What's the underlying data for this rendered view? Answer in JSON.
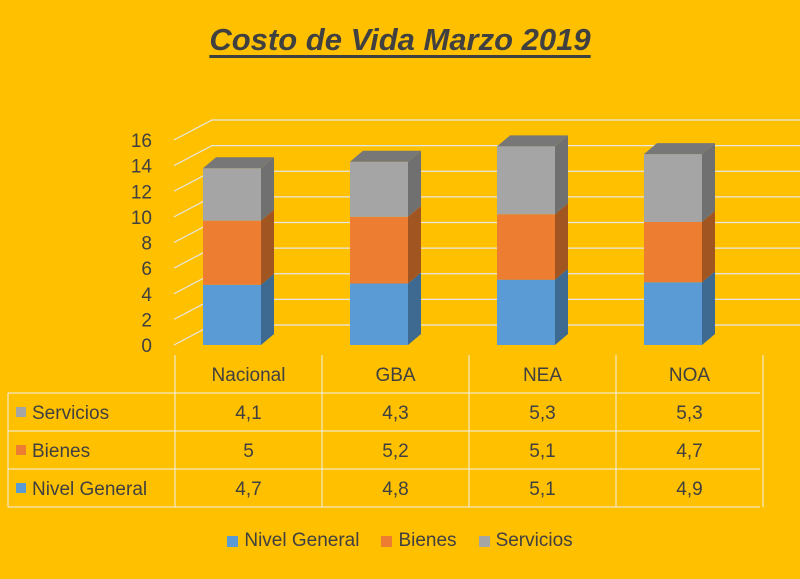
{
  "chart_data": {
    "type": "bar",
    "stacked": true,
    "three_d": true,
    "title": "Costo de Vida Marzo 2019",
    "categories": [
      "Nacional",
      "GBA",
      "NEA",
      "NOA"
    ],
    "ylim": [
      0,
      16
    ],
    "yticks": [
      "0",
      "2",
      "4",
      "6",
      "8",
      "10",
      "12",
      "14",
      "16"
    ],
    "grid": true,
    "legend": "bottom",
    "data_table": true,
    "series": [
      {
        "name": "Nivel General",
        "values": [
          4.7,
          4.8,
          5.1,
          4.9
        ],
        "labels": [
          "4,7",
          "4,8",
          "5,1",
          "4,9"
        ],
        "color": "#5B9BD5"
      },
      {
        "name": "Bienes",
        "values": [
          5,
          5.2,
          5.1,
          4.7
        ],
        "labels": [
          "5",
          "5,2",
          "5,1",
          "4,7"
        ],
        "color": "#ED7D31"
      },
      {
        "name": "Servicios",
        "values": [
          4.1,
          4.3,
          5.3,
          5.3
        ],
        "labels": [
          "4,1",
          "4,3",
          "5,3",
          "5,3"
        ],
        "color": "#A5A5A5"
      }
    ]
  },
  "background_color": "#FFC000"
}
